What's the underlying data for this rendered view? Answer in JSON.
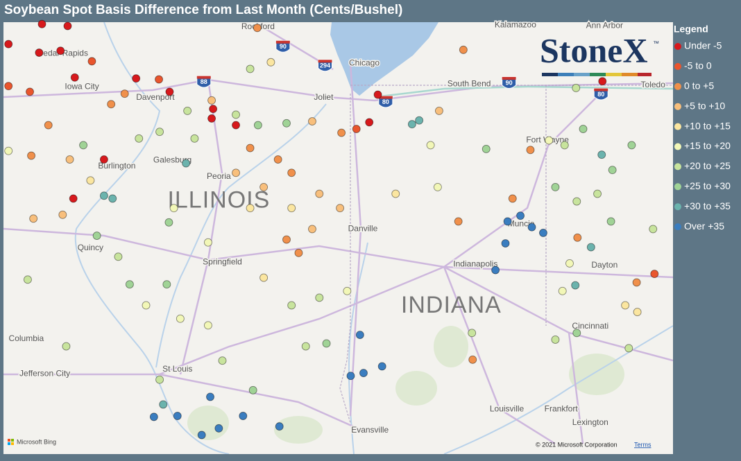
{
  "title": "Soybean Spot Basis Difference from Last Month (Cents/Bushel)",
  "legend": {
    "title": "Legend",
    "items": [
      {
        "label": "Under -5",
        "color": "#d7191c"
      },
      {
        "label": "-5 to 0",
        "color": "#e9552d"
      },
      {
        "label": "0 to +5",
        "color": "#f0904b"
      },
      {
        "label": "+5 to +10",
        "color": "#f8bf7c"
      },
      {
        "label": "+10 to +15",
        "color": "#fbe6a0"
      },
      {
        "label": "+15 to +20",
        "color": "#f2f7b7"
      },
      {
        "label": "+20 to +25",
        "color": "#c8e49d"
      },
      {
        "label": "+25 to +30",
        "color": "#a0d396"
      },
      {
        "label": "+30 to +35",
        "color": "#6bb3ad"
      },
      {
        "label": "Over +35",
        "color": "#3a7dbf"
      }
    ]
  },
  "map": {
    "lon_range": [
      -92.65,
      -83.26
    ],
    "lat_range": [
      37.78,
      42.31
    ],
    "states": [
      {
        "label": "ILLINOIS",
        "lon": -89.63,
        "lat": 40.43
      },
      {
        "label": "INDIANA",
        "lon": -86.37,
        "lat": 39.33
      }
    ],
    "cities": [
      {
        "label": "Rockford",
        "lon": -89.08,
        "lat": 42.26
      },
      {
        "label": "Kalamazoo",
        "lon": -85.47,
        "lat": 42.28
      },
      {
        "label": "Ann Arbor",
        "lon": -84.22,
        "lat": 42.27
      },
      {
        "label": "Cedar Rapids",
        "lon": -91.82,
        "lat": 41.98
      },
      {
        "label": "Chicago",
        "lon": -87.59,
        "lat": 41.88
      },
      {
        "label": "South Bend",
        "lon": -86.12,
        "lat": 41.66
      },
      {
        "label": "Toledo",
        "lon": -83.54,
        "lat": 41.65
      },
      {
        "label": "Iowa City",
        "lon": -91.55,
        "lat": 41.63
      },
      {
        "label": "Davenport",
        "lon": -90.52,
        "lat": 41.52
      },
      {
        "label": "Joliet",
        "lon": -88.16,
        "lat": 41.52
      },
      {
        "label": "Fort Wayne",
        "lon": -85.02,
        "lat": 41.07
      },
      {
        "label": "Galesburg",
        "lon": -90.28,
        "lat": 40.86
      },
      {
        "label": "Burlington",
        "lon": -91.06,
        "lat": 40.8
      },
      {
        "label": "Peoria",
        "lon": -89.63,
        "lat": 40.69
      },
      {
        "label": "Danville",
        "lon": -87.61,
        "lat": 40.14
      },
      {
        "label": "Muncie",
        "lon": -85.39,
        "lat": 40.19
      },
      {
        "label": "Quincy",
        "lon": -91.43,
        "lat": 39.94
      },
      {
        "label": "Springfield",
        "lon": -89.58,
        "lat": 39.79
      },
      {
        "label": "Indianapolis",
        "lon": -86.03,
        "lat": 39.77
      },
      {
        "label": "Dayton",
        "lon": -84.22,
        "lat": 39.76
      },
      {
        "label": "Cincinnati",
        "lon": -84.42,
        "lat": 39.12
      },
      {
        "label": "Columbia",
        "lon": -92.33,
        "lat": 38.99
      },
      {
        "label": "Jefferson City",
        "lon": -92.07,
        "lat": 38.62
      },
      {
        "label": "St Louis",
        "lon": -90.21,
        "lat": 38.67
      },
      {
        "label": "Louisville",
        "lon": -85.59,
        "lat": 38.25
      },
      {
        "label": "Frankfort",
        "lon": -84.83,
        "lat": 38.25
      },
      {
        "label": "Lexington",
        "lon": -84.42,
        "lat": 38.11
      },
      {
        "label": "Evansville",
        "lon": -87.51,
        "lat": 38.03
      }
    ],
    "interstates": [
      {
        "label": "90",
        "lon": -88.73,
        "lat": 42.05
      },
      {
        "label": "294",
        "lon": -88.14,
        "lat": 41.85
      },
      {
        "label": "88",
        "lon": -89.84,
        "lat": 41.68
      },
      {
        "label": "80",
        "lon": -87.29,
        "lat": 41.47
      },
      {
        "label": "90",
        "lon": -85.56,
        "lat": 41.67
      },
      {
        "label": "80",
        "lon": -84.27,
        "lat": 41.55
      }
    ]
  },
  "points": {
    "lon": [
      -92.11,
      -91.75,
      -92.58,
      -92.15,
      -91.85,
      -91.65,
      -92.58,
      -92.28,
      -91.41,
      -90.79,
      -90.47,
      -90.32,
      -89.71,
      -89.73,
      -89.39,
      -89.73,
      -89.39,
      -89.08,
      -88.68,
      -88.32,
      -87.52,
      -87.4,
      -87.7,
      -87.91,
      -86.82,
      -86.92,
      -86.54,
      -86.2,
      -84.25,
      -84.62,
      -85.26,
      -85.0,
      -84.78,
      -84.52,
      -84.26,
      -84.11,
      -83.84,
      -91.24,
      -91.67,
      -91.24,
      -91.12,
      -90.09,
      -90.33,
      -92.31,
      -91.77,
      -90.46,
      -90.41,
      -90.54,
      -90.21,
      -89.87,
      -89.63,
      -89.29,
      -88.78,
      -89.15,
      -89.75,
      -87.78,
      -87.6,
      -87.34,
      -87.65,
      -85.75,
      -85.4,
      -85.58,
      -85.61,
      -85.24,
      -85.08,
      -84.63,
      -84.41,
      -84.6,
      -85.51,
      -86.07,
      -83.77,
      -83.52,
      -89.19,
      -88.8,
      -88.61,
      -89.0,
      -89.39,
      -89.19,
      -88.61,
      -88.22,
      -87.93,
      -88.32,
      -88.68,
      -88.51,
      -89.0,
      -89.78,
      -90.26,
      -90.75,
      -90.46,
      -90.07,
      -89.97,
      -91.04,
      -91.34,
      -90.88,
      -90.36,
      -90.65,
      -90.17,
      -89.78,
      -89.58,
      -88.61,
      -88.22,
      -87.83,
      -88.12,
      -88.41,
      -86.56,
      -87.15,
      -86.27,
      -86.66,
      -85.88,
      -84.91,
      -84.61,
      -84.32,
      -84.13,
      -83.54,
      -84.71,
      -84.81,
      -83.93,
      -83.76,
      -84.61,
      -84.91,
      -86.08,
      -83.88,
      -91.53,
      -92.02,
      -92.26,
      -92.58,
      -91.72,
      -91.43,
      -91.82,
      -92.23,
      -90.95,
      -91.14,
      -89.09,
      -89.19,
      -88.9
    ],
    "lat": [
      42.29,
      42.27,
      42.08,
      41.99,
      42.01,
      41.73,
      41.64,
      41.58,
      41.9,
      41.72,
      41.71,
      41.58,
      41.4,
      41.3,
      41.23,
      41.49,
      41.34,
      41.23,
      41.25,
      41.27,
      41.26,
      41.55,
      41.19,
      41.15,
      41.28,
      41.24,
      41.38,
      42.02,
      41.69,
      41.62,
      40.97,
      41.07,
      41.02,
      41.19,
      40.92,
      40.76,
      41.02,
      40.87,
      40.46,
      40.49,
      40.46,
      40.83,
      40.21,
      39.61,
      38.91,
      38.56,
      38.3,
      38.17,
      38.18,
      37.98,
      38.05,
      38.18,
      38.07,
      38.45,
      38.38,
      38.6,
      38.63,
      38.7,
      39.03,
      39.71,
      40.28,
      40.22,
      39.99,
      40.16,
      40.1,
      39.55,
      39.95,
      40.05,
      40.46,
      38.77,
      39.58,
      39.67,
      40.99,
      40.87,
      40.73,
      40.58,
      40.73,
      40.36,
      40.36,
      40.51,
      40.36,
      40.14,
      40.03,
      39.89,
      39.63,
      40.0,
      40.36,
      41.09,
      41.16,
      41.38,
      41.09,
      39.85,
      40.07,
      39.56,
      39.56,
      39.34,
      39.2,
      39.13,
      38.76,
      39.34,
      39.42,
      39.49,
      38.94,
      38.91,
      40.58,
      40.51,
      40.22,
      41.02,
      40.98,
      40.58,
      40.43,
      40.51,
      40.22,
      40.14,
      39.78,
      39.49,
      39.34,
      39.27,
      39.05,
      38.98,
      39.05,
      38.89,
      41.02,
      41.23,
      40.91,
      40.96,
      40.87,
      40.65,
      40.29,
      40.25,
      41.56,
      41.45,
      42.25,
      41.82,
      41.89
    ],
    "class": [
      0,
      0,
      0,
      0,
      0,
      0,
      1,
      1,
      1,
      0,
      1,
      0,
      0,
      0,
      0,
      3,
      6,
      7,
      7,
      3,
      0,
      0,
      1,
      2,
      8,
      8,
      3,
      2,
      0,
      6,
      2,
      5,
      6,
      7,
      8,
      7,
      7,
      0,
      0,
      8,
      8,
      8,
      7,
      6,
      6,
      6,
      8,
      9,
      9,
      9,
      9,
      9,
      9,
      7,
      9,
      9,
      9,
      9,
      9,
      9,
      9,
      9,
      9,
      9,
      9,
      8,
      8,
      2,
      2,
      2,
      2,
      1,
      2,
      2,
      2,
      3,
      3,
      4,
      4,
      3,
      3,
      3,
      2,
      2,
      4,
      5,
      5,
      6,
      6,
      6,
      6,
      6,
      7,
      7,
      7,
      5,
      5,
      5,
      6,
      6,
      6,
      5,
      7,
      6,
      5,
      4,
      2,
      5,
      7,
      7,
      6,
      6,
      7,
      6,
      5,
      5,
      4,
      4,
      7,
      6,
      6,
      6,
      7,
      2,
      2,
      5,
      3,
      4,
      3,
      3,
      2,
      2,
      2,
      6,
      4
    ]
  },
  "logo": {
    "name": "StoneX",
    "mark": "™"
  },
  "attribution": {
    "provider": "Microsoft Bing",
    "copyright": "© 2021 Microsoft Corporation",
    "terms": "Terms"
  }
}
